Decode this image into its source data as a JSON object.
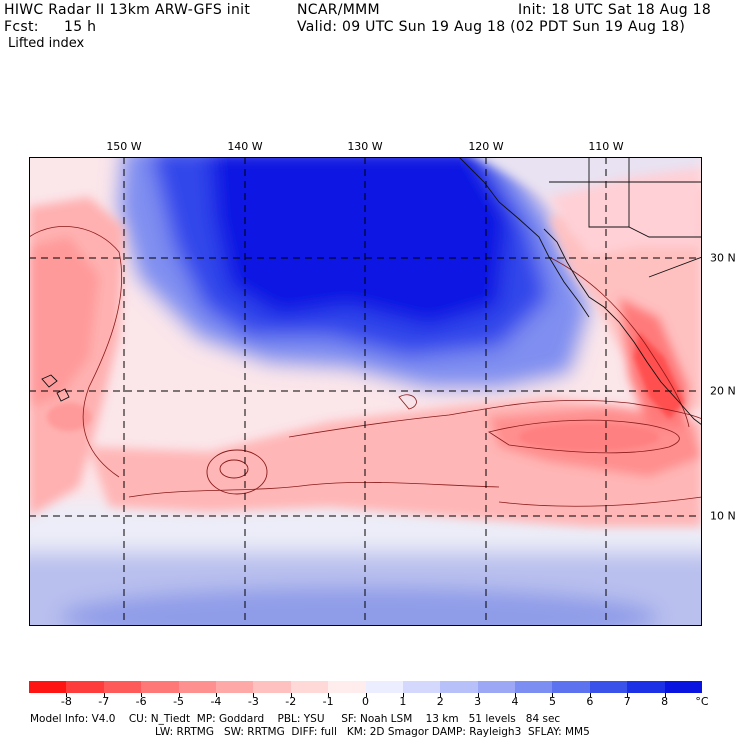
{
  "header": {
    "model_title": "HIWC Radar II 13km ARW-GFS init",
    "org": "NCAR/MMM",
    "init": "Init: 18 UTC Sat 18 Aug 18",
    "fcst_label": "Fcst:",
    "fcst_value": "15 h",
    "valid": "Valid: 09 UTC Sun 19 Aug 18 (02 PDT Sun 19 Aug 18)",
    "field": "Lifted index"
  },
  "map": {
    "lon_labels": [
      "150 W",
      "140 W",
      "130 W",
      "120 W",
      "110 W"
    ],
    "lat_labels": [
      "30 N",
      "20 N",
      "10 N"
    ],
    "lon_values": [
      -150,
      -140,
      -130,
      -120,
      -110
    ],
    "lat_values": [
      30,
      20,
      10
    ]
  },
  "colorbar": {
    "unit": "°C",
    "ticks": [
      "-8",
      "-7",
      "-6",
      "-5",
      "-4",
      "-3",
      "-2",
      "-1",
      "0",
      "1",
      "2",
      "3",
      "4",
      "5",
      "6",
      "7",
      "8"
    ],
    "colors": [
      "#ff1414",
      "#ff3c3c",
      "#ff5a5a",
      "#ff7878",
      "#ff9090",
      "#ffa8a8",
      "#ffc0c0",
      "#ffd8d8",
      "#ffecec",
      "#eceeff",
      "#d4d8fc",
      "#b8c0fa",
      "#9ca8f6",
      "#7c8ef2",
      "#5c72ee",
      "#3a52ea",
      "#1c30e6",
      "#0a14e0"
    ]
  },
  "footer": {
    "line1": "Model Info: V4.0    CU: N_Tiedt  MP: Goddard    PBL: YSU     SF: Noah LSM    13 km   51 levels   84 sec",
    "line2": "LW: RRTMG   SW: RRTMG  DIFF: full   KM: 2D Smagor DAMP: Rayleigh3  SFLAY: MM5"
  }
}
